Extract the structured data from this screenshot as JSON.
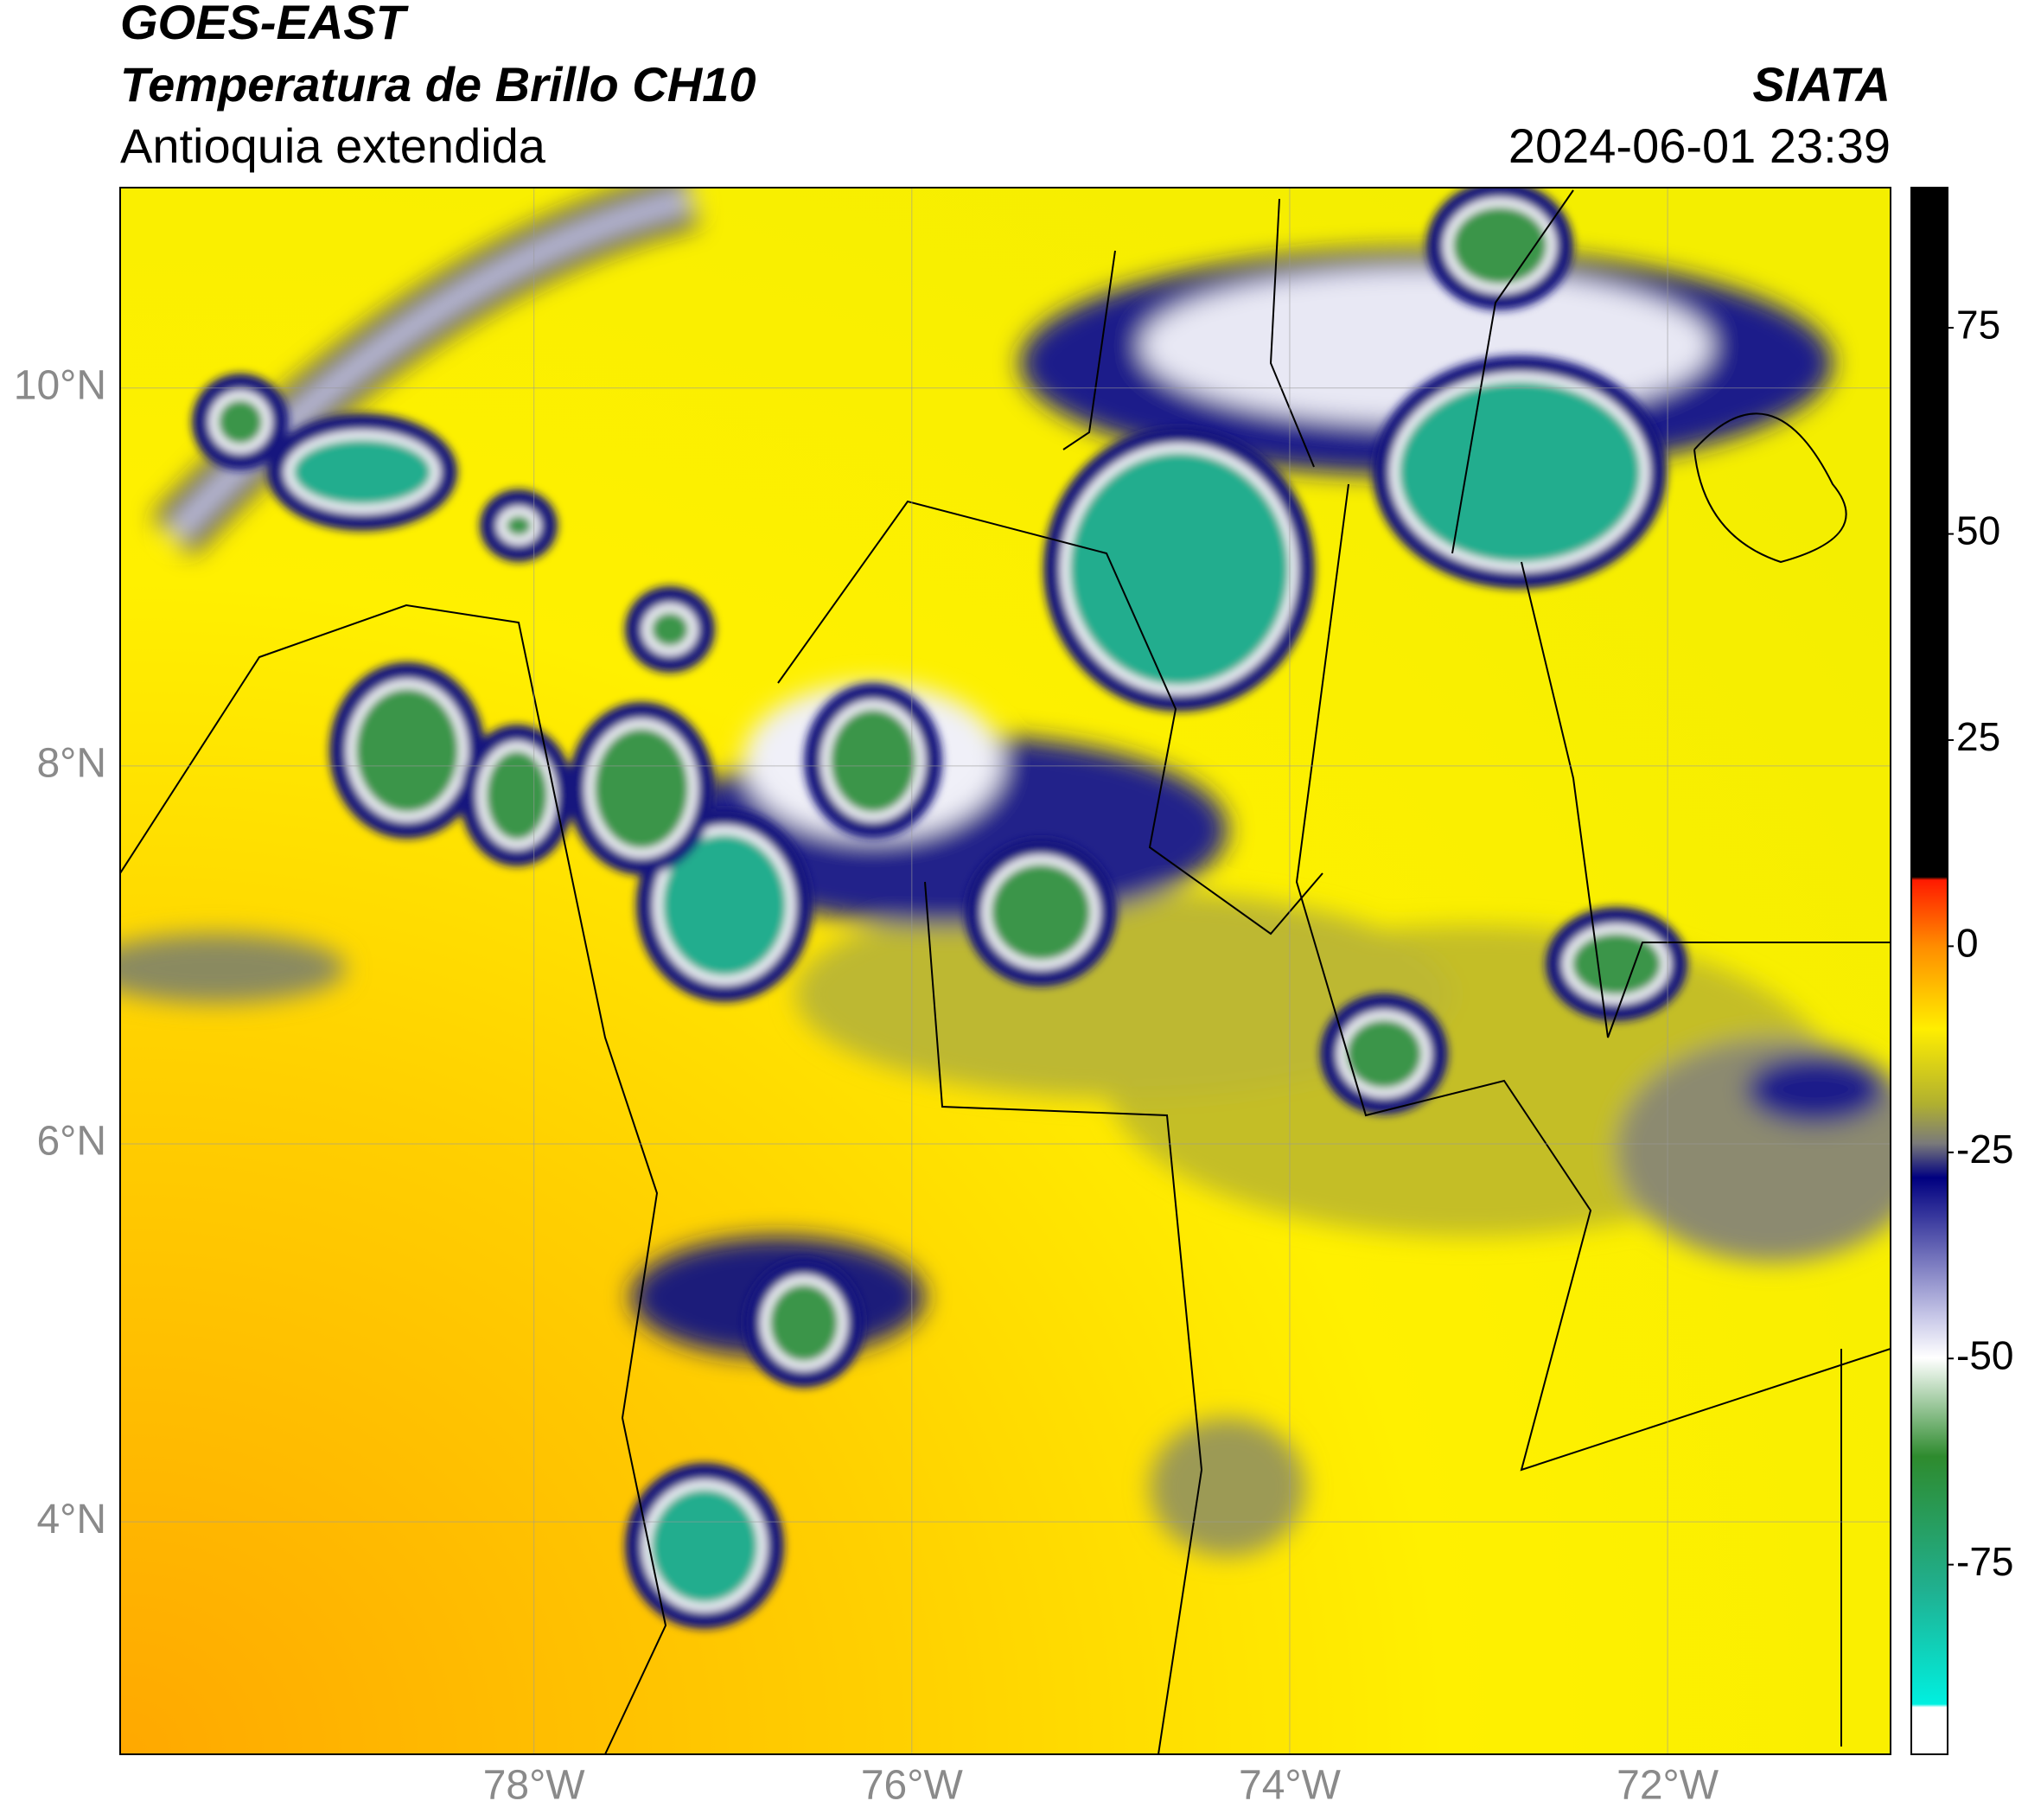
{
  "header": {
    "title_line1": "GOES-EAST",
    "title_line2": "Temperatura de Brillo CH10",
    "subtitle": "Antioquia extendida",
    "source": "SIATA",
    "timestamp": "2024-06-01 23:39"
  },
  "map": {
    "lonlim": [
      -80.19,
      -70.82
    ],
    "latlim": [
      2.77,
      11.06
    ],
    "grid": true,
    "lonticks": [
      {
        "value": -78,
        "label": "78°W"
      },
      {
        "value": -76,
        "label": "76°W"
      },
      {
        "value": -74,
        "label": "74°W"
      },
      {
        "value": -72,
        "label": "72°W"
      }
    ],
    "latticks": [
      {
        "value": 4,
        "label": "4°N"
      },
      {
        "value": 6,
        "label": "6°N"
      },
      {
        "value": 8,
        "label": "8°N"
      },
      {
        "value": 10,
        "label": "10°N"
      }
    ]
  },
  "colorbar": {
    "lim": [
      -98,
      92
    ],
    "ticks": [
      75,
      50,
      25,
      0,
      -25,
      -50,
      -75
    ]
  }
}
